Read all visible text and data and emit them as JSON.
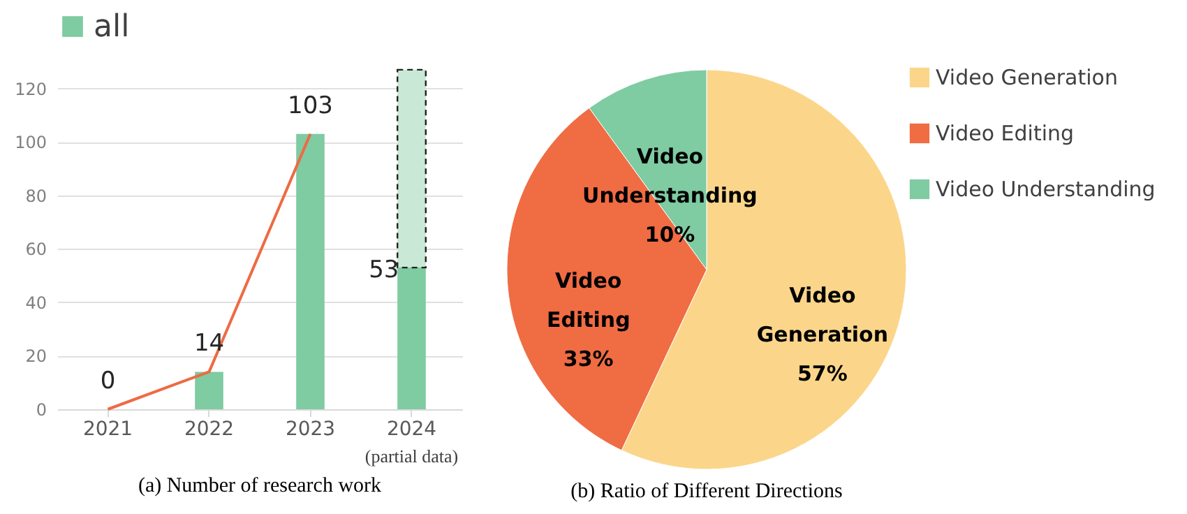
{
  "chart_data": [
    {
      "type": "bar",
      "title": "(a) Number of research work",
      "categories": [
        "2021",
        "2022",
        "2023",
        "2024"
      ],
      "stacked": true,
      "series": [
        {
          "name": "all",
          "color": "#7fcba2",
          "values": [
            0,
            14,
            103,
            53
          ],
          "value_labels": [
            "0",
            "14",
            "103",
            "53"
          ]
        },
        {
          "color": "#c9e8d6",
          "values": [
            null,
            null,
            null,
            74
          ],
          "line_style": "dashed"
        },
        {
          "type": "line",
          "color": "#ee6a44",
          "values": [
            0,
            14,
            103,
            null
          ]
        }
      ],
      "ylim": [
        0,
        128
      ],
      "yticks": [
        0,
        20,
        40,
        60,
        80,
        100,
        120
      ],
      "grid": "y",
      "legend": "top",
      "annotations": [
        "(partial data)"
      ]
    },
    {
      "type": "pie",
      "title": "(b) Ratio of Different Directions",
      "categories": [
        "Video Generation",
        "Video Editing",
        "Video Understanding"
      ],
      "values": [
        57,
        33,
        10
      ],
      "colors": [
        "#fbd68a",
        "#f06c43",
        "#7fcba2"
      ],
      "value_labels": [
        "57%",
        "33%",
        "10%"
      ],
      "legend": "right"
    }
  ]
}
